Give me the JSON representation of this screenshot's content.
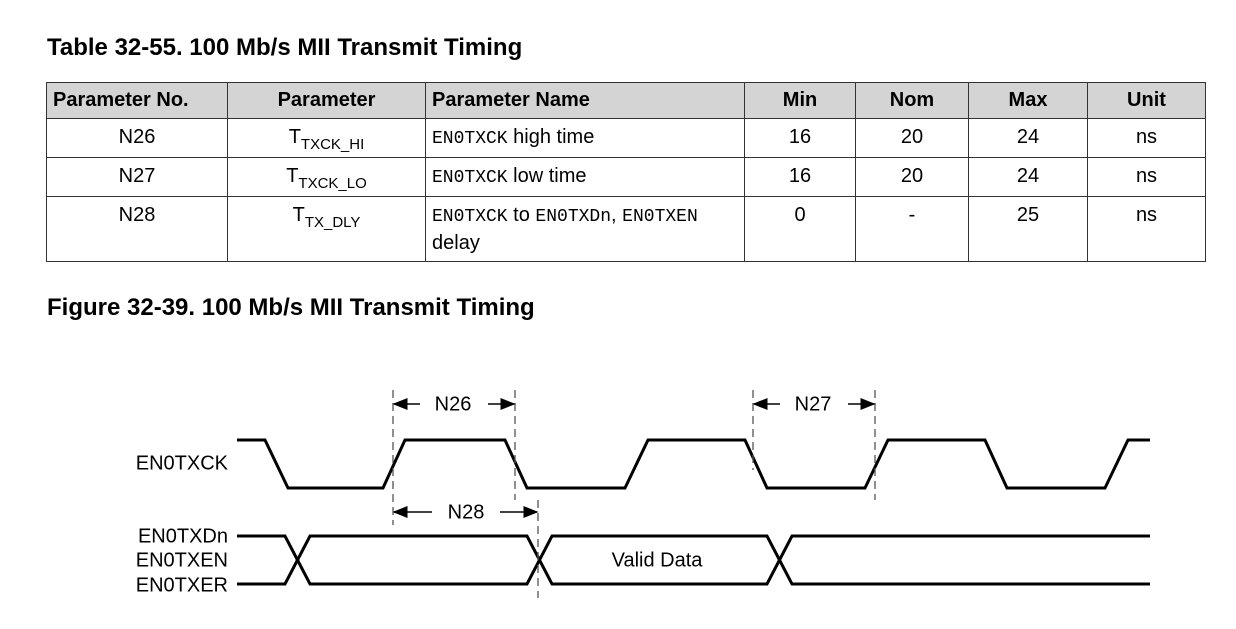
{
  "table_title": "Table 32-55. 100 Mb/s MII Transmit Timing",
  "table": {
    "headers": [
      "Parameter No.",
      "Parameter",
      "Parameter Name",
      "Min",
      "Nom",
      "Max",
      "Unit"
    ],
    "rows": [
      {
        "no": "N26",
        "param": {
          "main": "T",
          "sub": "TXCK_HI"
        },
        "name": [
          {
            "text": "EN0TXCK",
            "mono": true
          },
          {
            "text": " high time",
            "mono": false
          }
        ],
        "min": "16",
        "nom": "20",
        "max": "24",
        "unit": "ns"
      },
      {
        "no": "N27",
        "param": {
          "main": "T",
          "sub": "TXCK_LO"
        },
        "name": [
          {
            "text": "EN0TXCK",
            "mono": true
          },
          {
            "text": " low time",
            "mono": false
          }
        ],
        "min": "16",
        "nom": "20",
        "max": "24",
        "unit": "ns"
      },
      {
        "no": "N28",
        "param": {
          "main": "T",
          "sub": "TX_DLY"
        },
        "name": [
          {
            "text": "EN0TXCK",
            "mono": true
          },
          {
            "text": " to ",
            "mono": false
          },
          {
            "text": "EN0TXDn",
            "mono": true
          },
          {
            "text": ", ",
            "mono": false
          },
          {
            "text": "EN0TXEN",
            "mono": true
          },
          {
            "text": " delay",
            "mono": false
          }
        ],
        "min": "0",
        "nom": "-",
        "max": "25",
        "unit": "ns"
      }
    ]
  },
  "figure_title": "Figure 32-39. 100 Mb/s MII Transmit Timing",
  "diagram": {
    "clock_label": "EN0TXCK",
    "bus_labels": [
      "EN0TXDn",
      "EN0TXEN",
      "EN0TXER"
    ],
    "valid_data": "Valid Data",
    "intervals": [
      "N26",
      "N27",
      "N28"
    ]
  }
}
